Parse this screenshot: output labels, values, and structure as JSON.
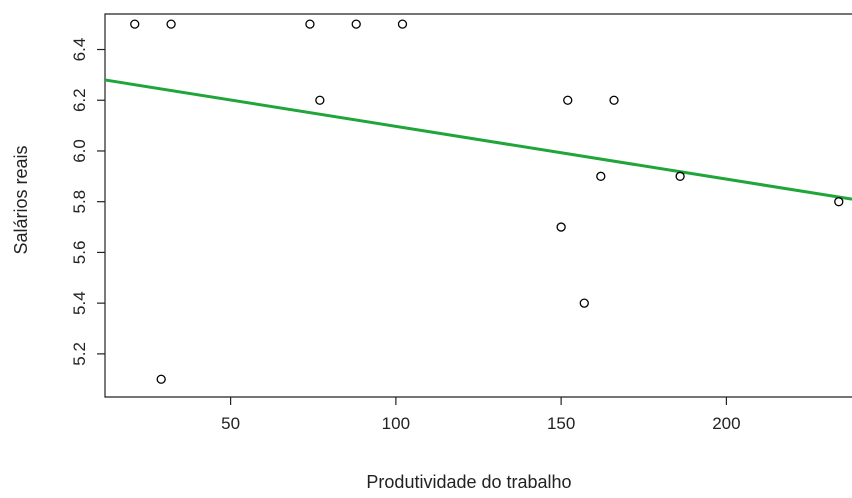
{
  "chart_data": {
    "type": "scatter",
    "xlabel": "Produtividade do trabalho",
    "ylabel": "Salários reais",
    "xlim": [
      12,
      238
    ],
    "ylim": [
      5.03,
      6.54
    ],
    "x_ticks": [
      50,
      100,
      150,
      200
    ],
    "y_ticks": [
      5.2,
      5.4,
      5.6,
      5.8,
      6.0,
      6.2,
      6.4
    ],
    "x_tick_labels": [
      "50",
      "100",
      "150",
      "200"
    ],
    "y_tick_labels": [
      "5.2",
      "5.4",
      "5.6",
      "5.8",
      "6.0",
      "6.2",
      "6.4"
    ],
    "points": [
      {
        "x": 21,
        "y": 6.5
      },
      {
        "x": 32,
        "y": 6.5
      },
      {
        "x": 29,
        "y": 5.1
      },
      {
        "x": 74,
        "y": 6.5
      },
      {
        "x": 77,
        "y": 6.2
      },
      {
        "x": 88,
        "y": 6.5
      },
      {
        "x": 102,
        "y": 6.5
      },
      {
        "x": 150,
        "y": 5.7
      },
      {
        "x": 152,
        "y": 6.2
      },
      {
        "x": 157,
        "y": 5.4
      },
      {
        "x": 162,
        "y": 5.9
      },
      {
        "x": 166,
        "y": 6.2
      },
      {
        "x": 186,
        "y": 5.9
      },
      {
        "x": 234,
        "y": 5.8
      }
    ],
    "regression_line": {
      "x": [
        12,
        238
      ],
      "y": [
        6.28,
        5.81
      ]
    },
    "grid": false,
    "colors": {
      "point_stroke": "#000000",
      "regression": "#1fa53a",
      "axis": "#222222"
    }
  }
}
